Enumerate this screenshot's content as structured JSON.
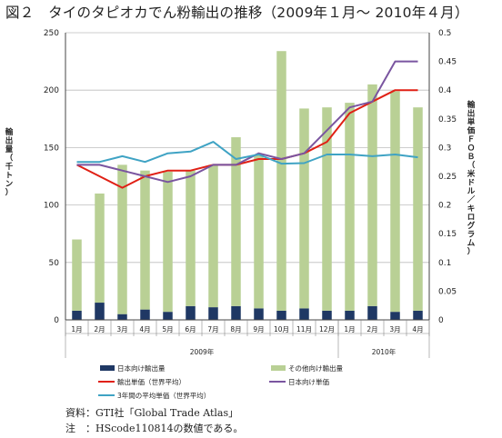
{
  "title": "図２　タイのタピオカでん粉輸出の推移（2009年１月～ 2010年４月）",
  "notes": {
    "source": "資料：GTI社「Global Trade Atlas」",
    "note": "注　：HScode110814の数値である。"
  },
  "colors": {
    "japan_bar": "#1f3864",
    "other_bar": "#b9d095",
    "export_price": "#e02015",
    "japan_price": "#7a55a0",
    "three_year_avg": "#3fa3c4"
  },
  "chart_data": {
    "type": "bar",
    "categories": [
      "1月",
      "2月",
      "3月",
      "4月",
      "5月",
      "6月",
      "7月",
      "8月",
      "9月",
      "10月",
      "11月",
      "12月",
      "1月",
      "2月",
      "3月",
      "4月"
    ],
    "year_groups": [
      {
        "label": "2009年",
        "count": 12
      },
      {
        "label": "2010年",
        "count": 4
      }
    ],
    "y_left": {
      "label": "輸出量（千トン）",
      "ylim": [
        0,
        250
      ],
      "ticks": [
        0,
        50,
        100,
        150,
        200,
        250
      ]
    },
    "y_right": {
      "label": "輸出単価ＦＯＢ（米ドル／キログラム）",
      "ylim": [
        0,
        0.5
      ],
      "ticks": [
        "0",
        "0.05",
        "0.1",
        "0.15",
        "0.2",
        "0.25",
        "0.3",
        "0.35",
        "0.4",
        "0.45",
        "0.5"
      ]
    },
    "grid": true,
    "stacked_series": [
      {
        "name": "日本向け輸出量",
        "values": [
          8,
          15,
          5,
          9,
          7,
          12,
          11,
          12,
          10,
          8,
          10,
          8,
          8,
          12,
          7,
          8
        ]
      },
      {
        "name": "その他向け輸出量",
        "values": [
          62,
          95,
          130,
          121,
          122,
          118,
          124,
          147,
          134,
          226,
          174,
          177,
          181,
          193,
          192,
          177
        ]
      }
    ],
    "line_series": [
      {
        "name": "輸出単価（世界平均）",
        "values": [
          0.27,
          0.25,
          0.23,
          0.25,
          0.26,
          0.26,
          0.27,
          0.27,
          0.28,
          0.28,
          0.29,
          0.31,
          0.36,
          0.38,
          0.4,
          0.4
        ]
      },
      {
        "name": "日本向け単価",
        "values": [
          0.27,
          0.27,
          0.26,
          0.25,
          0.24,
          0.25,
          0.27,
          0.27,
          0.29,
          0.28,
          0.29,
          0.33,
          0.37,
          0.38,
          0.45,
          0.45
        ]
      },
      {
        "name": "3年間の平均単価（世界平均）",
        "values": [
          0.275,
          0.275,
          0.285,
          0.275,
          0.29,
          0.293,
          0.31,
          0.28,
          0.288,
          0.272,
          0.273,
          0.288,
          0.288,
          0.285,
          0.288,
          0.283
        ]
      }
    ],
    "legend_position": "bottom"
  }
}
